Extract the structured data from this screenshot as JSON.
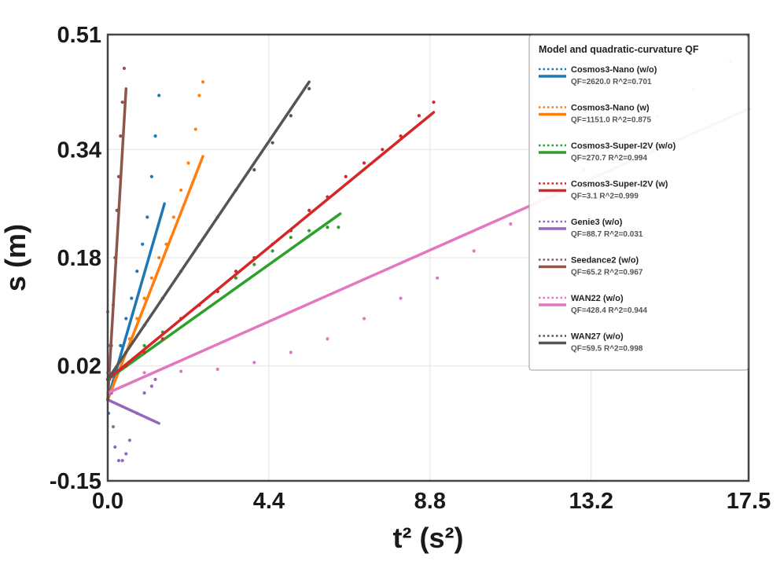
{
  "chart_data": {
    "type": "scatter",
    "xlabel": "t² (s²)",
    "ylabel": "s (m)",
    "xlim": [
      0.0,
      17.5
    ],
    "ylim": [
      -0.15,
      0.51
    ],
    "xticks": [
      "0.0",
      "4.4",
      "8.8",
      "13.2",
      "17.5"
    ],
    "yticks": [
      "-0.15",
      "0.02",
      "0.18",
      "0.34",
      "0.51"
    ],
    "xtick_values": [
      0.0,
      4.4,
      8.8,
      13.2,
      17.5
    ],
    "ytick_values": [
      -0.15,
      0.02,
      0.18,
      0.34,
      0.51
    ],
    "grid": true,
    "legend": {
      "title": "Model and quadratic-curvature QF",
      "placement": "top-right"
    },
    "series": [
      {
        "name": "Cosmos3-Nano (w/o)",
        "stats": "QF=2620.0 R^2=0.701",
        "color": "#1f77b4",
        "points": [
          [
            0.02,
            -0.05
          ],
          [
            0.1,
            -0.02
          ],
          [
            0.2,
            0.01
          ],
          [
            0.35,
            0.05
          ],
          [
            0.5,
            0.09
          ],
          [
            0.65,
            0.12
          ],
          [
            0.8,
            0.16
          ],
          [
            0.95,
            0.2
          ],
          [
            1.08,
            0.24
          ],
          [
            1.2,
            0.3
          ],
          [
            1.3,
            0.36
          ],
          [
            1.4,
            0.42
          ]
        ],
        "fit": [
          [
            0.0,
            -0.03
          ],
          [
            1.55,
            0.26
          ]
        ]
      },
      {
        "name": "Cosmos3-Nano (w)",
        "stats": "QF=1151.0 R^2=0.875",
        "color": "#ff7f0e",
        "points": [
          [
            0.05,
            -0.02
          ],
          [
            0.2,
            0.0
          ],
          [
            0.4,
            0.03
          ],
          [
            0.6,
            0.06
          ],
          [
            0.8,
            0.09
          ],
          [
            1.0,
            0.12
          ],
          [
            1.2,
            0.15
          ],
          [
            1.4,
            0.18
          ],
          [
            1.6,
            0.2
          ],
          [
            1.8,
            0.24
          ],
          [
            2.0,
            0.28
          ],
          [
            2.2,
            0.32
          ],
          [
            2.4,
            0.37
          ],
          [
            2.5,
            0.42
          ],
          [
            2.6,
            0.44
          ]
        ],
        "fit": [
          [
            0.0,
            -0.03
          ],
          [
            2.6,
            0.33
          ]
        ]
      },
      {
        "name": "Cosmos3-Super-I2V (w/o)",
        "stats": "QF=270.7 R^2=0.994",
        "color": "#2ca02c",
        "points": [
          [
            0.0,
            0.0
          ],
          [
            0.5,
            0.02
          ],
          [
            1.0,
            0.05
          ],
          [
            1.5,
            0.07
          ],
          [
            2.0,
            0.09
          ],
          [
            2.5,
            0.11
          ],
          [
            3.0,
            0.13
          ],
          [
            3.5,
            0.15
          ],
          [
            4.0,
            0.17
          ],
          [
            4.5,
            0.19
          ],
          [
            5.0,
            0.21
          ],
          [
            5.5,
            0.22
          ],
          [
            6.0,
            0.225
          ],
          [
            6.3,
            0.225
          ]
        ],
        "fit": [
          [
            0.0,
            0.0
          ],
          [
            6.35,
            0.245
          ]
        ]
      },
      {
        "name": "Cosmos3-Super-I2V (w)",
        "stats": "QF=3.1 R^2=0.999",
        "color": "#d62728",
        "points": [
          [
            0.0,
            0.0
          ],
          [
            0.5,
            0.02
          ],
          [
            1.0,
            0.04
          ],
          [
            1.5,
            0.06
          ],
          [
            2.0,
            0.09
          ],
          [
            2.5,
            0.11
          ],
          [
            3.0,
            0.13
          ],
          [
            3.5,
            0.16
          ],
          [
            4.0,
            0.18
          ],
          [
            4.5,
            0.2
          ],
          [
            5.0,
            0.22
          ],
          [
            5.5,
            0.25
          ],
          [
            6.0,
            0.27
          ],
          [
            6.5,
            0.3
          ],
          [
            7.0,
            0.32
          ],
          [
            7.5,
            0.34
          ],
          [
            8.0,
            0.36
          ],
          [
            8.5,
            0.39
          ],
          [
            8.9,
            0.41
          ]
        ],
        "fit": [
          [
            0.0,
            0.0
          ],
          [
            8.9,
            0.395
          ]
        ]
      },
      {
        "name": "Genie3 (w/o)",
        "stats": "QF=88.7 R^2=0.031",
        "color": "#9467bd",
        "points": [
          [
            0.0,
            0.1
          ],
          [
            0.05,
            0.05
          ],
          [
            0.1,
            -0.02
          ],
          [
            0.15,
            -0.07
          ],
          [
            0.2,
            -0.1
          ],
          [
            0.3,
            -0.12
          ],
          [
            0.4,
            -0.12
          ],
          [
            0.5,
            -0.11
          ],
          [
            0.6,
            -0.09
          ],
          [
            0.8,
            -0.05
          ],
          [
            1.0,
            -0.02
          ],
          [
            1.2,
            -0.01
          ],
          [
            1.3,
            0.0
          ]
        ],
        "fit": [
          [
            0.0,
            -0.03
          ],
          [
            1.4,
            -0.065
          ]
        ]
      },
      {
        "name": "Seedance2 (w/o)",
        "stats": "QF=65.2 R^2=0.967",
        "color": "#8c564b",
        "points": [
          [
            0.0,
            -0.03
          ],
          [
            0.05,
            0.0
          ],
          [
            0.1,
            0.05
          ],
          [
            0.15,
            0.11
          ],
          [
            0.2,
            0.18
          ],
          [
            0.25,
            0.25
          ],
          [
            0.3,
            0.3
          ],
          [
            0.35,
            0.36
          ],
          [
            0.4,
            0.41
          ],
          [
            0.45,
            0.46
          ]
        ],
        "fit": [
          [
            0.0,
            -0.03
          ],
          [
            0.5,
            0.43
          ]
        ]
      },
      {
        "name": "WAN22 (w/o)",
        "stats": "QF=428.4 R^2=0.944",
        "color": "#e377c2",
        "points": [
          [
            0.0,
            0.01
          ],
          [
            1.0,
            0.01
          ],
          [
            2.0,
            0.012
          ],
          [
            3.0,
            0.015
          ],
          [
            4.0,
            0.025
          ],
          [
            5.0,
            0.04
          ],
          [
            6.0,
            0.06
          ],
          [
            7.0,
            0.09
          ],
          [
            8.0,
            0.12
          ],
          [
            9.0,
            0.15
          ],
          [
            10.0,
            0.19
          ],
          [
            11.0,
            0.23
          ],
          [
            12.0,
            0.27
          ],
          [
            13.0,
            0.31
          ],
          [
            14.0,
            0.35
          ],
          [
            15.0,
            0.39
          ],
          [
            16.0,
            0.43
          ],
          [
            17.0,
            0.47
          ]
        ],
        "fit": [
          [
            0.0,
            -0.02
          ],
          [
            17.5,
            0.4
          ]
        ]
      },
      {
        "name": "WAN27 (w/o)",
        "stats": "QF=59.5 R^2=0.998",
        "color": "#555555",
        "points": [
          [
            0.0,
            0.0
          ],
          [
            0.5,
            0.04
          ],
          [
            1.0,
            0.08
          ],
          [
            1.5,
            0.12
          ],
          [
            2.0,
            0.16
          ],
          [
            2.5,
            0.2
          ],
          [
            3.0,
            0.24
          ],
          [
            3.5,
            0.28
          ],
          [
            4.0,
            0.31
          ],
          [
            4.5,
            0.35
          ],
          [
            5.0,
            0.39
          ],
          [
            5.5,
            0.43
          ]
        ],
        "fit": [
          [
            0.0,
            0.0
          ],
          [
            5.5,
            0.44
          ]
        ]
      }
    ]
  }
}
